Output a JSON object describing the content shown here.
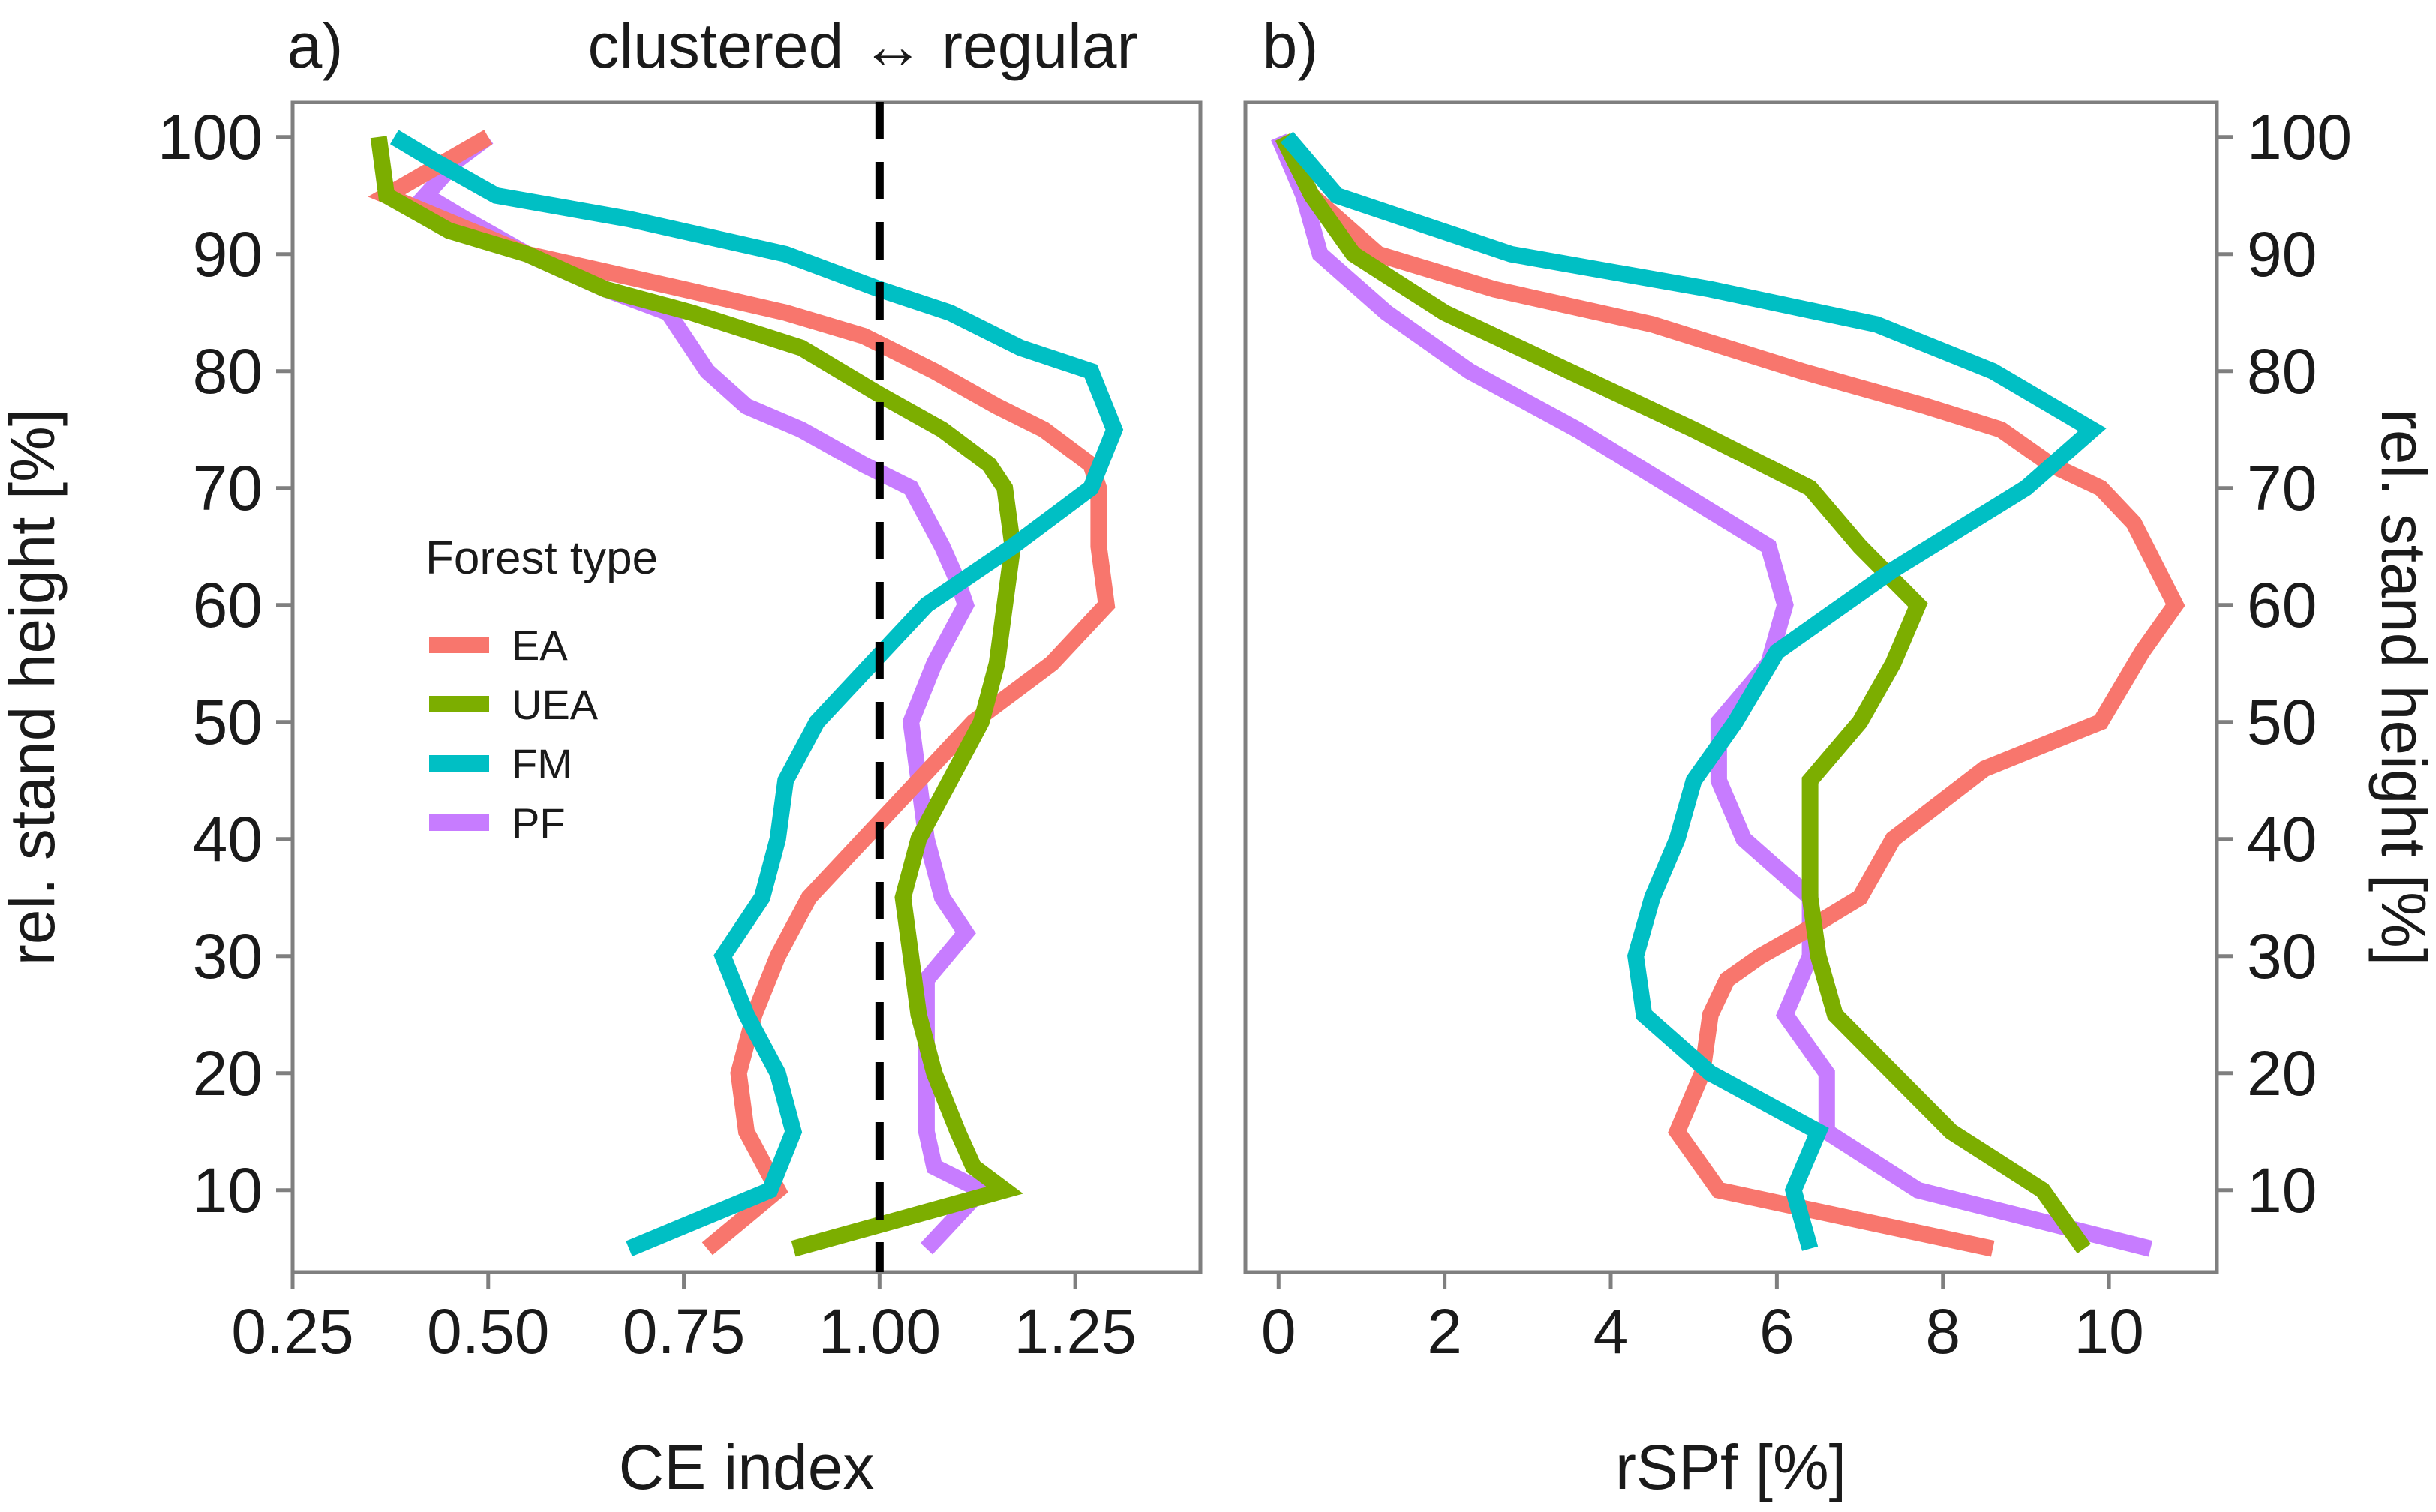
{
  "chart_data": [
    {
      "panel": "a)",
      "type": "line",
      "annotation": "clustered ↔ regular",
      "xlabel": "CE index",
      "ylabel": "rel. stand height [%]",
      "xlim": [
        0.25,
        1.41
      ],
      "ylim": [
        3,
        103
      ],
      "xticks": [
        "0.25",
        "0.50",
        "0.75",
        "1.00",
        "1.25"
      ],
      "xtick_values": [
        0.25,
        0.5,
        0.75,
        1.0,
        1.25
      ],
      "yticks": [
        "10",
        "20",
        "30",
        "40",
        "50",
        "60",
        "70",
        "80",
        "90",
        "100"
      ],
      "ytick_values": [
        10,
        20,
        30,
        40,
        50,
        60,
        70,
        80,
        90,
        100
      ],
      "reference_line": {
        "x": 1.0,
        "style": "dashed",
        "color": "#000000"
      },
      "series": [
        {
          "name": "EA",
          "x": [
            0.5,
            0.37,
            0.55,
            0.75,
            0.88,
            0.98,
            1.07,
            1.15,
            1.21,
            1.27,
            1.28,
            1.28,
            1.29,
            1.22,
            1.12,
            1.05,
            0.98,
            0.91,
            0.87,
            0.84,
            0.82,
            0.83,
            0.87,
            0.78
          ],
          "y": [
            100,
            95,
            90,
            87,
            85,
            83,
            80,
            77,
            75,
            72,
            70,
            65,
            60,
            55,
            50,
            45,
            40,
            35,
            30,
            25,
            20,
            15,
            10,
            5
          ]
        },
        {
          "name": "UEA",
          "x": [
            0.36,
            0.37,
            0.45,
            0.55,
            0.65,
            0.76,
            0.9,
            1.0,
            1.08,
            1.14,
            1.16,
            1.17,
            1.16,
            1.15,
            1.13,
            1.09,
            1.05,
            1.03,
            1.04,
            1.05,
            1.07,
            1.1,
            1.12,
            1.16,
            0.89
          ],
          "y": [
            100,
            95,
            92,
            90,
            87,
            85,
            82,
            78,
            75,
            72,
            70,
            65,
            60,
            55,
            50,
            45,
            40,
            35,
            30,
            25,
            20,
            15,
            12,
            10,
            5
          ]
        },
        {
          "name": "FM",
          "x": [
            0.38,
            0.43,
            0.51,
            0.68,
            0.88,
            1.0,
            1.09,
            1.18,
            1.27,
            1.3,
            1.27,
            1.17,
            1.06,
            0.99,
            0.92,
            0.88,
            0.87,
            0.85,
            0.8,
            0.83,
            0.87,
            0.89,
            0.86,
            0.68
          ],
          "y": [
            100,
            98,
            95,
            93,
            90,
            87,
            85,
            82,
            80,
            75,
            70,
            65,
            60,
            55,
            50,
            45,
            40,
            35,
            30,
            25,
            20,
            15,
            10,
            5
          ]
        },
        {
          "name": "PF",
          "x": [
            0.5,
            0.46,
            0.42,
            0.47,
            0.55,
            0.65,
            0.73,
            0.78,
            0.83,
            0.9,
            0.98,
            1.04,
            1.08,
            1.1,
            1.11,
            1.07,
            1.04,
            1.05,
            1.06,
            1.08,
            1.11,
            1.06,
            1.06,
            1.06,
            1.07,
            1.13,
            1.06
          ],
          "y": [
            100,
            98,
            95,
            93,
            90,
            87,
            85,
            80,
            77,
            75,
            72,
            70,
            65,
            62,
            60,
            55,
            50,
            45,
            40,
            35,
            32,
            28,
            20,
            15,
            12,
            10,
            5
          ]
        }
      ]
    },
    {
      "panel": "b)",
      "type": "line",
      "xlabel": "rSPf [%]",
      "ylabel": "rel. stand height [%]",
      "xlim": [
        -0.4,
        11.3
      ],
      "ylim": [
        3,
        103
      ],
      "xticks": [
        "0",
        "2",
        "4",
        "6",
        "8",
        "10"
      ],
      "xtick_values": [
        0,
        2,
        4,
        6,
        8,
        10
      ],
      "yticks": [
        "10",
        "20",
        "30",
        "40",
        "50",
        "60",
        "70",
        "80",
        "90",
        "100"
      ],
      "ytick_values": [
        10,
        20,
        30,
        40,
        50,
        60,
        70,
        80,
        90,
        100
      ],
      "series": [
        {
          "name": "EA",
          "x": [
            0.05,
            0.4,
            1.2,
            2.6,
            4.5,
            6.3,
            7.8,
            8.7,
            9.3,
            9.9,
            10.3,
            10.8,
            10.4,
            9.9,
            8.5,
            7.4,
            7.0,
            6.3,
            5.8,
            5.4,
            5.2,
            5.1,
            4.8,
            5.3,
            8.6
          ],
          "y": [
            100,
            95,
            90,
            87,
            84,
            80,
            77,
            75,
            72,
            70,
            67,
            60,
            56,
            50,
            46,
            40,
            35,
            32,
            30,
            28,
            25,
            20,
            15,
            10,
            5
          ]
        },
        {
          "name": "UEA",
          "x": [
            0.05,
            0.4,
            0.9,
            2.0,
            3.5,
            5.0,
            6.4,
            7.0,
            7.7,
            7.4,
            7.0,
            6.4,
            6.4,
            6.5,
            6.7,
            7.4,
            8.1,
            9.2,
            9.7
          ],
          "y": [
            100,
            95,
            90,
            85,
            80,
            75,
            70,
            65,
            60,
            55,
            50,
            45,
            35,
            30,
            25,
            20,
            15,
            10,
            5
          ]
        },
        {
          "name": "FM",
          "x": [
            0.1,
            0.7,
            2.8,
            5.2,
            7.2,
            8.6,
            9.8,
            9.0,
            7.4,
            6.0,
            5.5,
            5.0,
            4.8,
            4.5,
            4.3,
            4.4,
            5.2,
            6.5,
            6.2,
            6.4
          ],
          "y": [
            100,
            95,
            90,
            87,
            84,
            80,
            75,
            70,
            63,
            56,
            50,
            45,
            40,
            35,
            30,
            25,
            20,
            15,
            10,
            5
          ]
        },
        {
          "name": "PF",
          "x": [
            0.0,
            0.3,
            0.5,
            1.3,
            2.3,
            3.6,
            5.9,
            6.1,
            5.9,
            5.3,
            5.3,
            5.6,
            6.4,
            6.4,
            6.1,
            6.6,
            6.6,
            7.7,
            10.5
          ],
          "y": [
            100,
            95,
            90,
            85,
            80,
            75,
            65,
            60,
            55,
            50,
            45,
            40,
            35,
            30,
            25,
            20,
            15,
            10,
            5
          ]
        }
      ]
    }
  ],
  "legend": {
    "title": "Forest type",
    "items": [
      {
        "label": "EA",
        "color": "#F8766D"
      },
      {
        "label": "UEA",
        "color": "#7CAE00"
      },
      {
        "label": "FM",
        "color": "#00BFC4"
      },
      {
        "label": "PF",
        "color": "#C77CFF"
      }
    ]
  },
  "colors": {
    "EA": "#F8766D",
    "UEA": "#7CAE00",
    "FM": "#00BFC4",
    "PF": "#C77CFF",
    "frame": "#7f7f7f",
    "reference": "#000000"
  }
}
